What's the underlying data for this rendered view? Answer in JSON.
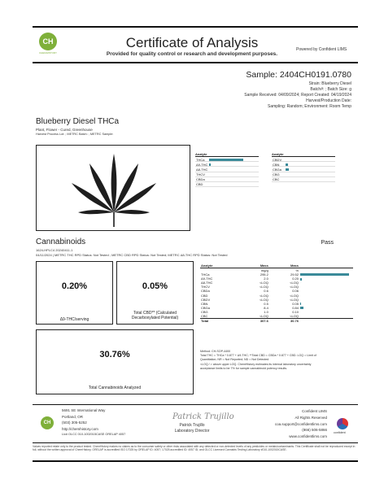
{
  "header": {
    "logo_text": "CH",
    "logo_caption": "CHEMHISTORY",
    "title": "Certificate of Analysis",
    "subtitle": "Provided for quality control or research and development purposes.",
    "powered_by": "Powered by Confident LIMS"
  },
  "sample": {
    "id": "Sample: 2404CH0191.0780",
    "strain": "Strain: Blueberry Diesel",
    "batch": "Batch#: ; Batch Size: g",
    "received": "Sample Received: 04/09/2024; Report Created: 04/19/2024",
    "harvest": "Harvest/Production Date:",
    "sampling": "Sampling: Random; Environment: Room Temp"
  },
  "product": {
    "name": "Blueberry Diesel THCa",
    "type": "Plant, Flower - Cured, Greenhouse",
    "process": "Harvest Process Lot: ; METRC Batch: ; METRC Sample:"
  },
  "mini_analytes": {
    "header": "Analyte",
    "left": [
      {
        "label": "THCa",
        "fill": 0.72
      },
      {
        "label": "Δ9-THC",
        "fill": 0.03
      },
      {
        "label": "Δ8-THC",
        "fill": 0
      },
      {
        "label": "THCV",
        "fill": 0
      },
      {
        "label": "CBDa",
        "fill": 0
      },
      {
        "label": "CBD",
        "fill": 0
      }
    ],
    "right": [
      {
        "label": "CBDV",
        "fill": 0
      },
      {
        "label": "CBN",
        "fill": 0.05
      },
      {
        "label": "CBGa",
        "fill": 0.07
      },
      {
        "label": "CBG",
        "fill": 0
      },
      {
        "label": "CBC",
        "fill": 0
      }
    ]
  },
  "cannabinoids": {
    "title": "Cannabinoids",
    "status": "Pass",
    "code": "1624-HPLC4 20240411-1",
    "status_line": "04/11/2024 | METRC THC RPD Status: Not Tested ; METRC CBD RPD Status: Not Tested; METRC Δ8-THC RPD Status: Not Tested",
    "cards": [
      {
        "value": "0.20%",
        "label": "Δ9-THC/serving"
      },
      {
        "value": "0.05%",
        "label": "Total CBD** (Calculated Decarboxylated Potential)"
      },
      {
        "value": "30.76%",
        "label": "Total Cannabinoids Analyzed"
      }
    ],
    "table": {
      "headers": [
        "Analyte",
        "Mass",
        "Mass"
      ],
      "units": [
        "",
        "mg/g",
        "%"
      ],
      "rows": [
        {
          "analyte": "THCa",
          "mg": "295.2",
          "pct": "29.52",
          "fill": 1.0
        },
        {
          "analyte": "Δ9-THC",
          "mg": "2.0",
          "pct": "0.20",
          "fill": 0.04
        },
        {
          "analyte": "Δ8-THC",
          "mg": "<LOQ",
          "pct": "<LOQ",
          "fill": 0
        },
        {
          "analyte": "THCV",
          "mg": "<LOQ",
          "pct": "<LOQ",
          "fill": 0
        },
        {
          "analyte": "CBDa",
          "mg": "0.6",
          "pct": "0.06",
          "fill": 0
        },
        {
          "analyte": "CBD",
          "mg": "<LOQ",
          "pct": "<LOQ",
          "fill": 0
        },
        {
          "analyte": "CBDV",
          "mg": "<LOQ",
          "pct": "<LOQ",
          "fill": 0
        },
        {
          "analyte": "CBN",
          "mg": "0.5",
          "pct": "0.05",
          "fill": 0.02
        },
        {
          "analyte": "CBGa",
          "mg": "8.4",
          "pct": "0.84",
          "fill": 0.06
        },
        {
          "analyte": "CBG",
          "mg": "1.0",
          "pct": "0.10",
          "fill": 0
        },
        {
          "analyte": "CBC",
          "mg": "<LOQ",
          "pct": "<LOQ",
          "fill": 0
        }
      ],
      "total": {
        "analyte": "Total",
        "mg": "307.6",
        "pct": "30.76"
      }
    },
    "method": [
      "Method: CH-SOP-4400",
      "Total THC = THCa * 0.877 + Δ9-THC; **Total CBD = CBDa * 0.877 + CBD. LOQ = Limit of",
      "Quantitation; NR = Not Reported; ND = Not Detected",
      "<LOQ / > above upper LOQ. ChemHistory estimates its internal laboratory uncertainty",
      "acceptance limits to be 7% for sample cannabinoid potency results."
    ]
  },
  "footer": {
    "address": [
      "5691 SE International Way",
      "Portland, OR",
      "(503) 305-5252",
      "http://chemhistory.com",
      "Lic# OLCC 010-1002015CASE ORELAP 4057"
    ],
    "signature": "Patrick Trujillo",
    "signer_name": "Patrick Trujillo",
    "signer_title": "Laboratory Director",
    "lims": [
      "Confident LIMS",
      "All Rights Reserved",
      "coa.support@confidentlims.com",
      "(866) 506-5866",
      "www.confidentlims.com"
    ],
    "confident_label": "confident",
    "disclaimer": "Values reported relate only to the product tested. ChemHistory makes no claims as to the consumer safety or other risks associated with any detected or non-detected levels of any pesticides or metals/contaminants. This Certificate shall not be reproduced except in full, without the written approval of ChemHistory. ORELAP is accredited ISO 17025 by ORELAP ID: 4057; 17025 accredited ID: 4057 ID; and OLCC Licensed Cannabis Testing Laboratory #010-1002015CASE."
  }
}
